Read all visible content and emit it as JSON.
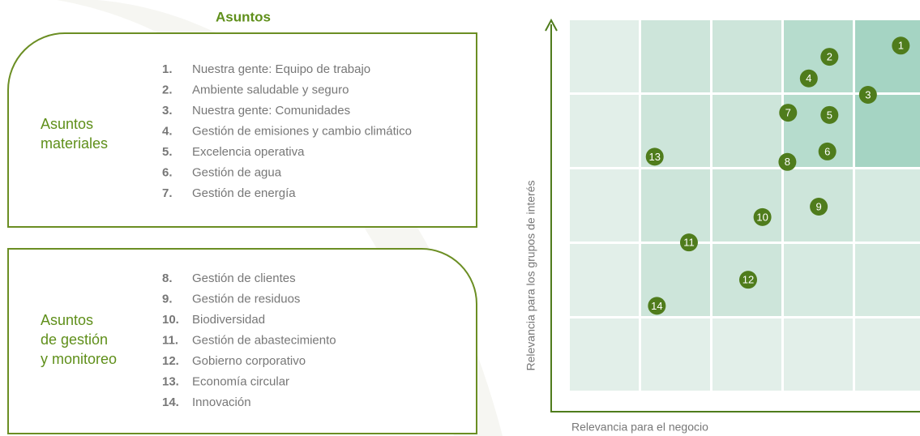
{
  "title": "Asuntos",
  "groups": [
    {
      "label": [
        "Asuntos",
        "materiales"
      ],
      "items": [
        {
          "number": "1.",
          "text": "Nuestra gente: Equipo de trabajo"
        },
        {
          "number": "2.",
          "text": "Ambiente saludable y seguro"
        },
        {
          "number": "3.",
          "text": "Nuestra gente: Comunidades"
        },
        {
          "number": "4.",
          "text": "Gestión de emisiones y cambio climático"
        },
        {
          "number": "5.",
          "text": "Excelencia operativa"
        },
        {
          "number": "6.",
          "text": "Gestión de agua"
        },
        {
          "number": "7.",
          "text": "Gestión de energía"
        }
      ]
    },
    {
      "label": [
        "Asuntos",
        "de gestión",
        "y monitoreo"
      ],
      "items": [
        {
          "number": "8.",
          "text": "Gestión de clientes"
        },
        {
          "number": "9.",
          "text": "Gestión de residuos"
        },
        {
          "number": "10.",
          "text": "Biodiversidad"
        },
        {
          "number": "11.",
          "text": "Gestión de abastecimiento"
        },
        {
          "number": "12.",
          "text": "Gobierno corporativo"
        },
        {
          "number": "13.",
          "text": "Economía circular"
        },
        {
          "number": "14.",
          "text": "Innovación"
        }
      ]
    }
  ],
  "matrix": {
    "type": "scatter",
    "x_label": "Relevancia para el negocio",
    "y_label": "Relevancia para los grupos de interés",
    "xlim": [
      0,
      5
    ],
    "ylim": [
      0,
      5
    ],
    "color": "#4f7c1c",
    "points": [
      {
        "label": "1",
        "x": 4.64,
        "y": 4.66
      },
      {
        "label": "2",
        "x": 3.64,
        "y": 4.51
      },
      {
        "label": "3",
        "x": 4.18,
        "y": 4.0
      },
      {
        "label": "4",
        "x": 3.35,
        "y": 4.22
      },
      {
        "label": "5",
        "x": 3.64,
        "y": 3.73
      },
      {
        "label": "6",
        "x": 3.61,
        "y": 3.24
      },
      {
        "label": "7",
        "x": 3.06,
        "y": 3.76
      },
      {
        "label": "8",
        "x": 3.05,
        "y": 3.1
      },
      {
        "label": "9",
        "x": 3.49,
        "y": 2.5
      },
      {
        "label": "10",
        "x": 2.7,
        "y": 2.36
      },
      {
        "label": "11",
        "x": 1.67,
        "y": 2.02
      },
      {
        "label": "12",
        "x": 2.5,
        "y": 1.52
      },
      {
        "label": "13",
        "x": 1.19,
        "y": 3.17
      },
      {
        "label": "14",
        "x": 1.22,
        "y": 1.17
      }
    ]
  }
}
